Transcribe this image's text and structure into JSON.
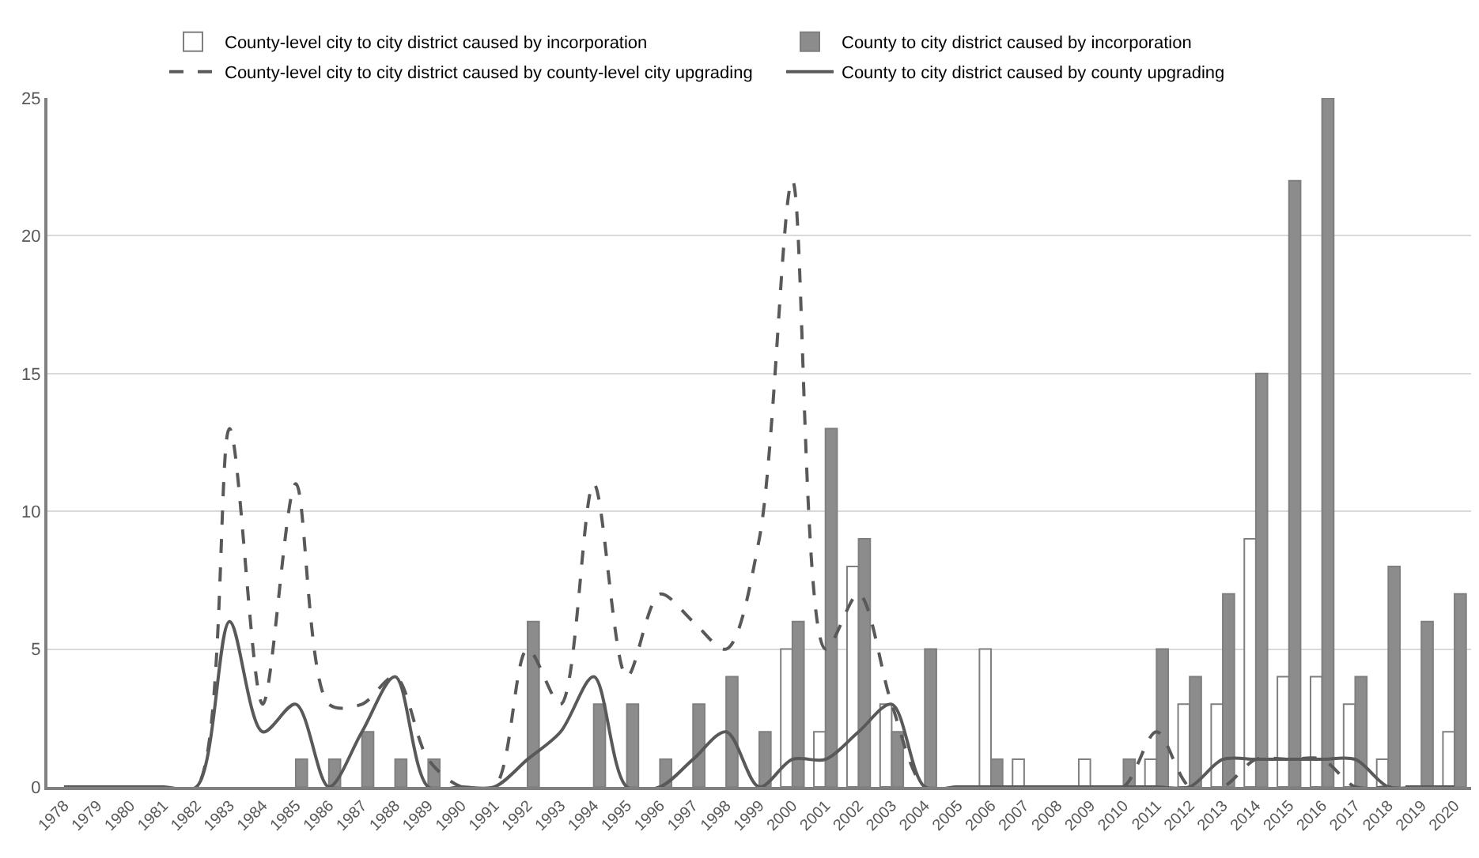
{
  "chart_data": {
    "type": "bar",
    "categories": [
      "1978",
      "1979",
      "1980",
      "1981",
      "1982",
      "1983",
      "1984",
      "1985",
      "1986",
      "1987",
      "1988",
      "1989",
      "1990",
      "1991",
      "1992",
      "1993",
      "1994",
      "1995",
      "1996",
      "1997",
      "1998",
      "1999",
      "2000",
      "2001",
      "2002",
      "2003",
      "2004",
      "2005",
      "2006",
      "2007",
      "2008",
      "2009",
      "2010",
      "2011",
      "2012",
      "2013",
      "2014",
      "2015",
      "2016",
      "2017",
      "2018",
      "2019",
      "2020"
    ],
    "series": [
      {
        "name": "County-level city to city district caused by incorporation",
        "type": "bar",
        "color": "#ffffff",
        "values": [
          0,
          0,
          0,
          0,
          0,
          0,
          0,
          0,
          0,
          0,
          0,
          0,
          0,
          0,
          0,
          0,
          0,
          0,
          0,
          0,
          0,
          0,
          5,
          2,
          8,
          3,
          0,
          0,
          5,
          1,
          0,
          1,
          0,
          1,
          3,
          3,
          9,
          4,
          4,
          3,
          1,
          0,
          2
        ]
      },
      {
        "name": "County to city district caused by incorporation",
        "type": "bar",
        "color": "#8c8c8c",
        "values": [
          0,
          0,
          0,
          0,
          0,
          0,
          0,
          1,
          1,
          2,
          1,
          1,
          0,
          0,
          6,
          0,
          3,
          3,
          1,
          3,
          4,
          2,
          6,
          13,
          9,
          2,
          5,
          0,
          1,
          0,
          0,
          0,
          1,
          5,
          4,
          7,
          15,
          22,
          25,
          4,
          8,
          6,
          7
        ]
      },
      {
        "name": "County-level city to city district caused by county-level city upgrading",
        "type": "line",
        "line_style": "dashed",
        "color": "#595959",
        "values": [
          0,
          0,
          0,
          0,
          0,
          13,
          3,
          11,
          3,
          3,
          4,
          1,
          0,
          0,
          5,
          3,
          11,
          4,
          7,
          6,
          5,
          9,
          22,
          5,
          7,
          3,
          0,
          0,
          0,
          0,
          0,
          0,
          0,
          2,
          0,
          0,
          1,
          1,
          1,
          0,
          0,
          0,
          0
        ]
      },
      {
        "name": "County to city district caused by county upgrading",
        "type": "line",
        "line_style": "solid",
        "color": "#595959",
        "values": [
          0,
          0,
          0,
          0,
          0,
          6,
          2,
          3,
          0,
          2,
          4,
          0,
          0,
          0,
          1,
          2,
          4,
          0,
          0,
          1,
          2,
          0,
          1,
          1,
          2,
          3,
          0,
          0,
          0,
          0,
          0,
          0,
          0,
          0,
          0,
          1,
          1,
          1,
          1,
          1,
          0,
          0,
          0
        ]
      }
    ],
    "ylim": [
      0,
      25
    ],
    "yticks": [
      0,
      5,
      10,
      15,
      20,
      25
    ],
    "grid": "y",
    "legend": "top",
    "marker": "none"
  }
}
